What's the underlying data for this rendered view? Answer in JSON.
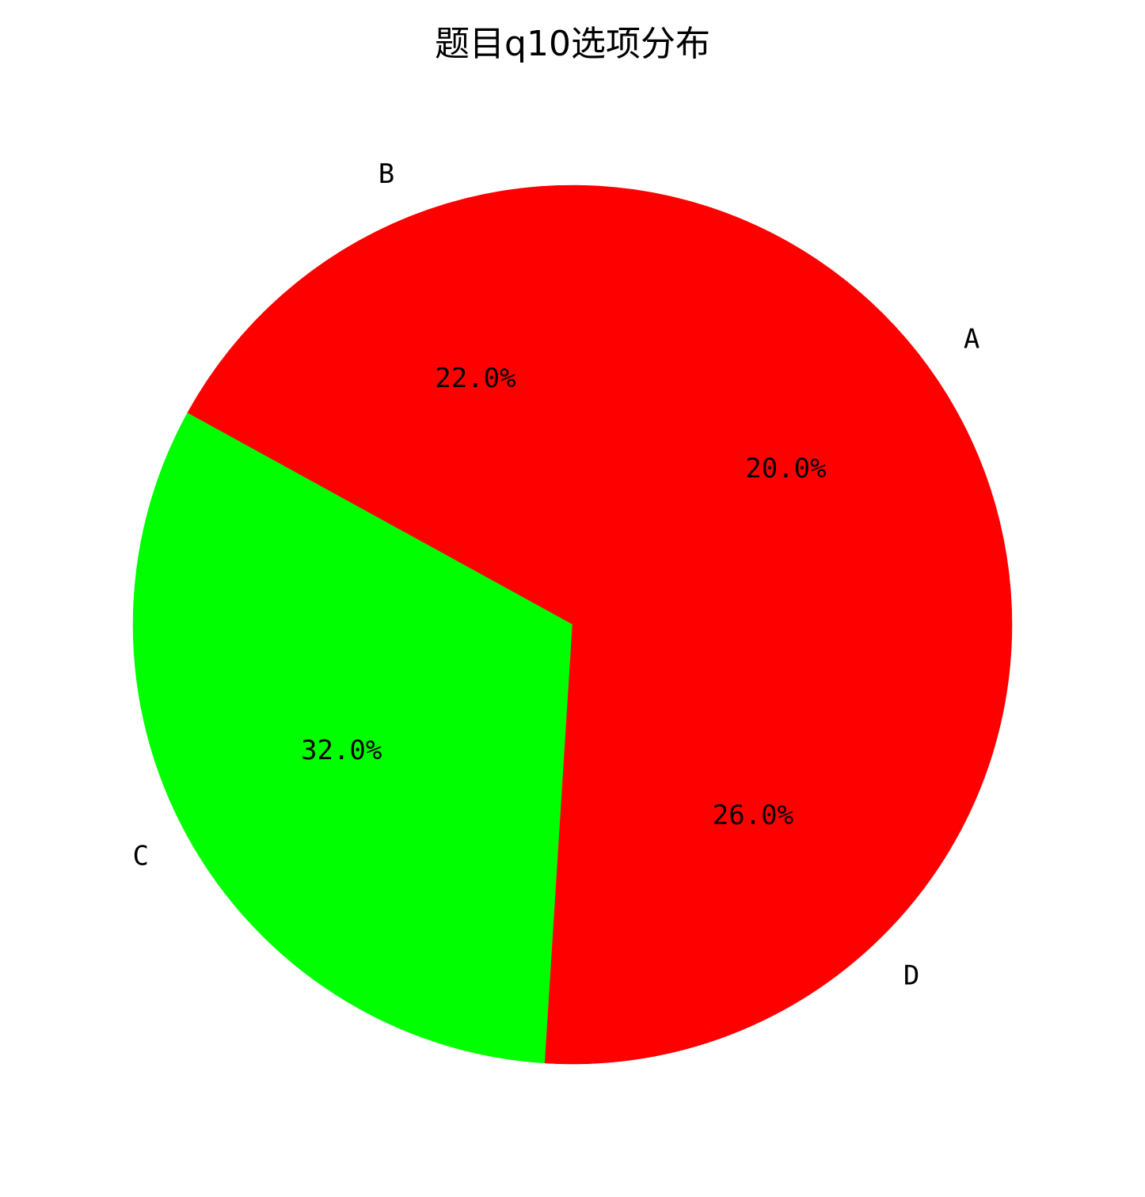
{
  "chart_data": {
    "type": "pie",
    "title": "题目q10选项分布",
    "start_angle_deg": 0,
    "direction": "counterclockwise",
    "slices": [
      {
        "label": "A",
        "value": 20.0,
        "pct_label": "20.0%",
        "color": "#ff0000"
      },
      {
        "label": "B",
        "value": 22.0,
        "pct_label": "22.0%",
        "color": "#ff0000"
      },
      {
        "label": "C",
        "value": 32.0,
        "pct_label": "32.0%",
        "color": "#00ff00"
      },
      {
        "label": "D",
        "value": 26.0,
        "pct_label": "26.0%",
        "color": "#ff0000"
      }
    ]
  }
}
